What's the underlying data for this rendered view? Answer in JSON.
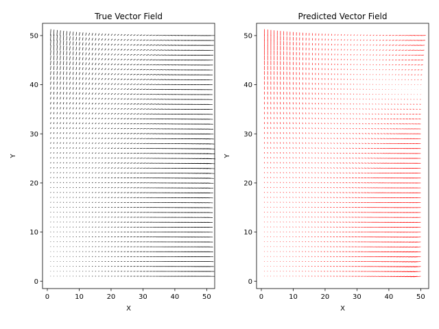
{
  "chart_data": [
    {
      "type": "quiver",
      "title": "True Vector Field",
      "xlabel": "X",
      "ylabel": "Y",
      "xlim": [
        -1.5,
        52.5
      ],
      "ylim": [
        -1.5,
        52.5
      ],
      "xticks": [
        0,
        10,
        20,
        30,
        40,
        50
      ],
      "yticks": [
        0,
        10,
        20,
        30,
        40,
        50
      ],
      "grid_x": {
        "start": 1,
        "end": 50,
        "count": 50
      },
      "grid_y": {
        "start": 1,
        "end": 50,
        "count": 50
      },
      "arrow_color": "#000000",
      "sources": [
        {
          "x": 1,
          "y": 50,
          "u": 0.0,
          "v": 1.0
        },
        {
          "x": 50,
          "y": 1,
          "u": 1.0,
          "v": 0.0
        },
        {
          "x": 50,
          "y": 50,
          "u": 1.0,
          "v": 0.0
        },
        {
          "x": 50,
          "y": 25,
          "u": 1.0,
          "v": -0.1
        }
      ],
      "decay": 14,
      "magnitude_range": [
        0,
        1
      ]
    },
    {
      "type": "quiver",
      "title": "Predicted Vector Field",
      "xlabel": "X",
      "ylabel": "Y",
      "xlim": [
        -1.5,
        52.5
      ],
      "ylim": [
        -1.5,
        52.5
      ],
      "xticks": [
        0,
        10,
        20,
        30,
        40,
        50
      ],
      "yticks": [
        0,
        10,
        20,
        30,
        40,
        50
      ],
      "grid_x": {
        "start": 1,
        "end": 50,
        "count": 50
      },
      "grid_y": {
        "start": 1,
        "end": 50,
        "count": 50
      },
      "arrow_color": "#ff0000",
      "sources": [
        {
          "x": 1,
          "y": 50,
          "u": 0.0,
          "v": 1.0
        },
        {
          "x": 50,
          "y": 1,
          "u": -1.0,
          "v": -0.1
        },
        {
          "x": 50,
          "y": 50,
          "u": 1.0,
          "v": 0.0
        },
        {
          "x": 50,
          "y": 25,
          "u": -1.0,
          "v": 0.0
        }
      ],
      "decay": 15,
      "magnitude_range": [
        0,
        1
      ]
    }
  ]
}
